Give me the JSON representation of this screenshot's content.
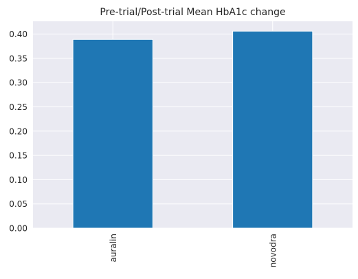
{
  "chart_data": {
    "type": "bar",
    "title": "Pre-trial/Post-trial Mean HbA1c change",
    "xlabel": "",
    "ylabel": "",
    "categories": [
      "auralin",
      "novodra"
    ],
    "values": [
      0.389,
      0.406
    ],
    "ylim": [
      0,
      0.4263
    ],
    "yticks": [
      "0.00",
      "0.05",
      "0.10",
      "0.15",
      "0.20",
      "0.25",
      "0.30",
      "0.35",
      "0.40"
    ],
    "grid": true,
    "legend": "none",
    "colors": {
      "bar": "#1f77b4",
      "background": "#eaeaf2",
      "grid": "#ffffff",
      "text": "#262626"
    }
  }
}
